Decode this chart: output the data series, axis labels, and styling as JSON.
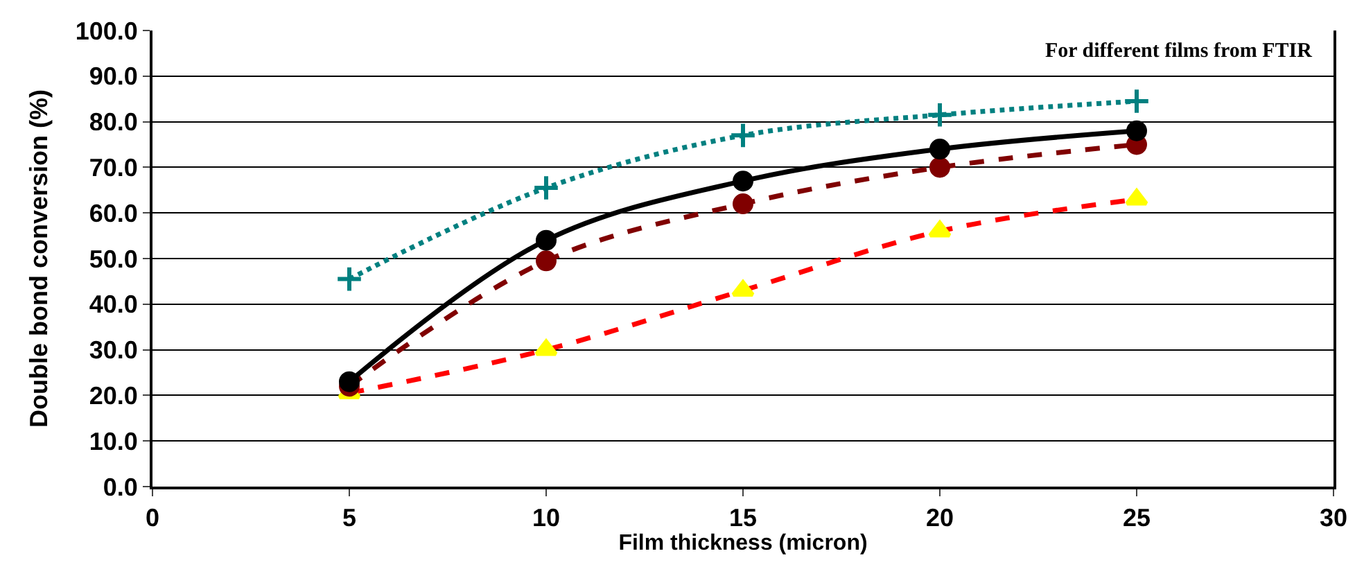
{
  "chart_data": {
    "type": "line",
    "xlabel": "Film thickness (micron)",
    "ylabel": "Double bond conversion (%)",
    "annotations": [
      "For different films from FTIR"
    ],
    "x": [
      5,
      10,
      15,
      20,
      25
    ],
    "series": [
      {
        "color": "#008080",
        "values": [
          45.5,
          65.5,
          77,
          81.5,
          84.5
        ],
        "marker": "cross",
        "line_style": "dotted"
      },
      {
        "color": "#000000",
        "values": [
          23,
          54,
          67,
          74,
          78
        ],
        "marker": "circle",
        "line_style": "solid"
      },
      {
        "color": "#800000",
        "values": [
          22,
          49.5,
          62,
          70,
          75
        ],
        "marker": "circle",
        "line_style": "dashed"
      },
      {
        "color": "#ff0000",
        "colors": [
          "#ffff00",
          "#ffff00",
          "#ffff00",
          "#ffff00",
          "#ffff00"
        ],
        "values": [
          20.5,
          30,
          43,
          56,
          63
        ],
        "marker": "triangle",
        "line_style": "dashed"
      }
    ],
    "xlim": [
      0,
      30
    ],
    "xticks": [
      0,
      5,
      10,
      15,
      20,
      25,
      30
    ],
    "ylim": [
      0,
      100
    ],
    "yticks": [
      {
        "value": 0,
        "label": "0.0"
      },
      {
        "value": 10,
        "label": "10.0"
      },
      {
        "value": 20,
        "label": "20.0"
      },
      {
        "value": 30,
        "label": "30.0"
      },
      {
        "value": 40,
        "label": "40.0"
      },
      {
        "value": 50,
        "label": "50.0"
      },
      {
        "value": 60,
        "label": "60.0"
      },
      {
        "value": 70,
        "label": "70.0"
      },
      {
        "value": 80,
        "label": "80.0"
      },
      {
        "value": 90,
        "label": "90.0"
      },
      {
        "value": 100,
        "label": "100.0"
      }
    ],
    "grid": "y"
  }
}
